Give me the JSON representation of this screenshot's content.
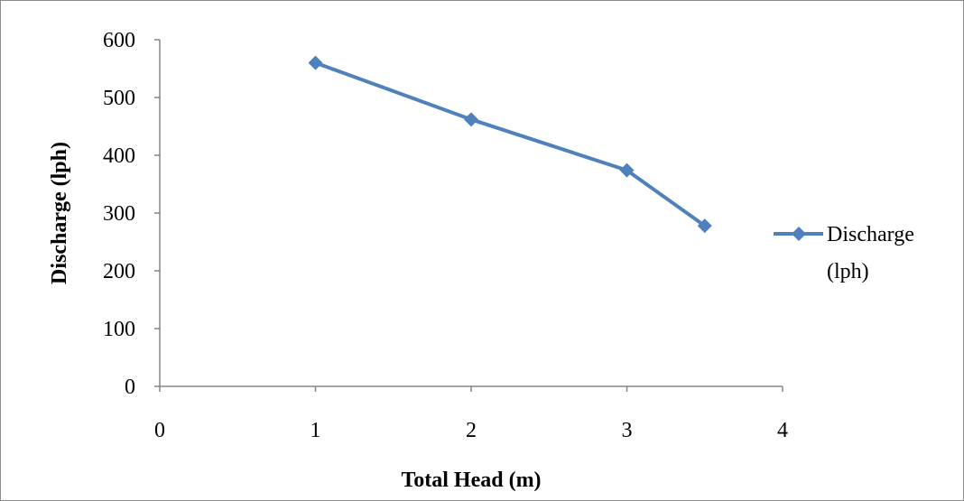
{
  "chart_data": {
    "type": "line",
    "title": "",
    "xlabel": "Total Head (m)",
    "ylabel": "Discharge (lph)",
    "xlim": [
      0,
      4
    ],
    "ylim": [
      0,
      600
    ],
    "x_ticks": [
      "0",
      "1",
      "2",
      "3",
      "4"
    ],
    "y_ticks": [
      "0",
      "100",
      "200",
      "300",
      "400",
      "500",
      "600"
    ],
    "grid": false,
    "legend_position": "right",
    "series": [
      {
        "name": "Discharge (lph)",
        "legend_lines": [
          "Discharge",
          "(lph)"
        ],
        "color": "#4f81bd",
        "marker": "diamond",
        "x": [
          1,
          2,
          3,
          3.5
        ],
        "y": [
          560,
          462,
          374,
          278
        ]
      }
    ]
  }
}
